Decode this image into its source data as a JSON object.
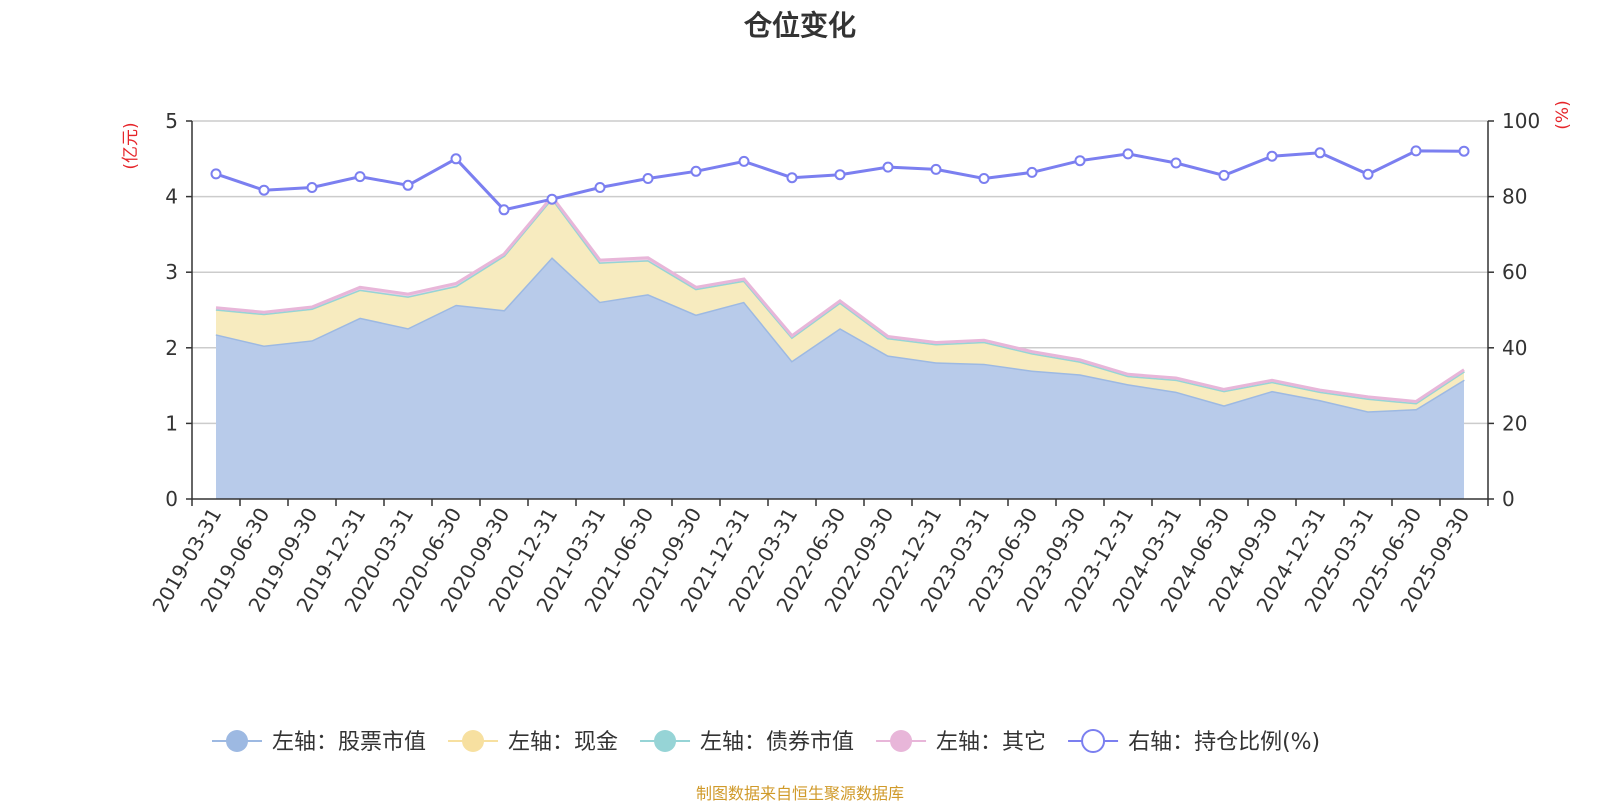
{
  "page": {
    "title": "仓位变化",
    "source": "制图数据来自恒生聚源数据库"
  },
  "chart_data": {
    "type": "area",
    "title": "仓位变化",
    "categories": [
      "2019-03-31",
      "2019-06-30",
      "2019-09-30",
      "2019-12-31",
      "2020-03-31",
      "2020-06-30",
      "2020-09-30",
      "2020-12-31",
      "2021-03-31",
      "2021-06-30",
      "2021-09-30",
      "2021-12-31",
      "2022-03-31",
      "2022-06-30",
      "2022-09-30",
      "2022-12-31",
      "2023-03-31",
      "2023-06-30",
      "2023-09-30",
      "2023-12-31",
      "2024-03-31",
      "2024-06-30",
      "2024-09-30",
      "2024-12-31",
      "2025-03-31",
      "2025-06-30",
      "2025-09-30"
    ],
    "left_axis": {
      "unit": "(亿元)",
      "ylim": [
        0,
        5
      ],
      "ticks": [
        0,
        1,
        2,
        3,
        4,
        5
      ]
    },
    "right_axis": {
      "unit": "(%)",
      "ylim": [
        0,
        100
      ],
      "ticks": [
        0,
        20,
        40,
        60,
        80,
        100
      ]
    },
    "stack_series": [
      {
        "name": "左轴：股票市值",
        "color": "#9db9e2",
        "fill": "#b8cbea",
        "values": [
          2.18,
          2.03,
          2.1,
          2.4,
          2.26,
          2.57,
          2.5,
          3.2,
          2.61,
          2.71,
          2.44,
          2.61,
          1.83,
          2.26,
          1.9,
          1.81,
          1.79,
          1.7,
          1.65,
          1.52,
          1.42,
          1.24,
          1.43,
          1.31,
          1.16,
          1.19,
          1.58
        ]
      },
      {
        "name": "左轴：现金",
        "color": "#f7e0a0",
        "fill": "#f7ebbf",
        "values": [
          0.33,
          0.42,
          0.42,
          0.37,
          0.42,
          0.25,
          0.72,
          0.78,
          0.52,
          0.45,
          0.34,
          0.28,
          0.31,
          0.34,
          0.23,
          0.24,
          0.29,
          0.23,
          0.17,
          0.11,
          0.16,
          0.19,
          0.12,
          0.11,
          0.17,
          0.08,
          0.11
        ]
      },
      {
        "name": "左轴：债券市值",
        "color": "#96d4d6",
        "fill": "#b5e2e3",
        "values": [
          0,
          0,
          0,
          0,
          0,
          0,
          0,
          0,
          0,
          0,
          0,
          0,
          0,
          0,
          0,
          0,
          0,
          0,
          0,
          0,
          0,
          0,
          0,
          0,
          0,
          0,
          0
        ]
      },
      {
        "name": "左轴：其它",
        "color": "#e8b6d9",
        "fill": "#efcfe6",
        "values": [
          0.02,
          0.02,
          0.02,
          0.03,
          0.03,
          0.03,
          0.02,
          0.02,
          0.03,
          0.03,
          0.02,
          0.02,
          0.02,
          0.02,
          0.02,
          0.02,
          0.02,
          0.02,
          0.02,
          0.02,
          0.02,
          0.02,
          0.02,
          0.02,
          0.02,
          0.02,
          0.02
        ]
      }
    ],
    "line_series": {
      "name": "右轴：持仓比例(%)",
      "color": "#7b7ff0",
      "values": [
        86.0,
        81.7,
        82.4,
        85.3,
        83.0,
        90.0,
        76.5,
        79.3,
        82.4,
        84.8,
        86.7,
        89.3,
        85.0,
        85.8,
        87.8,
        87.2,
        84.8,
        86.4,
        89.5,
        91.3,
        88.9,
        85.6,
        90.7,
        91.6,
        85.9,
        92.1,
        92.0
      ]
    },
    "xlabel": "",
    "ylabel": "",
    "grid": true,
    "legend_position": "bottom"
  }
}
